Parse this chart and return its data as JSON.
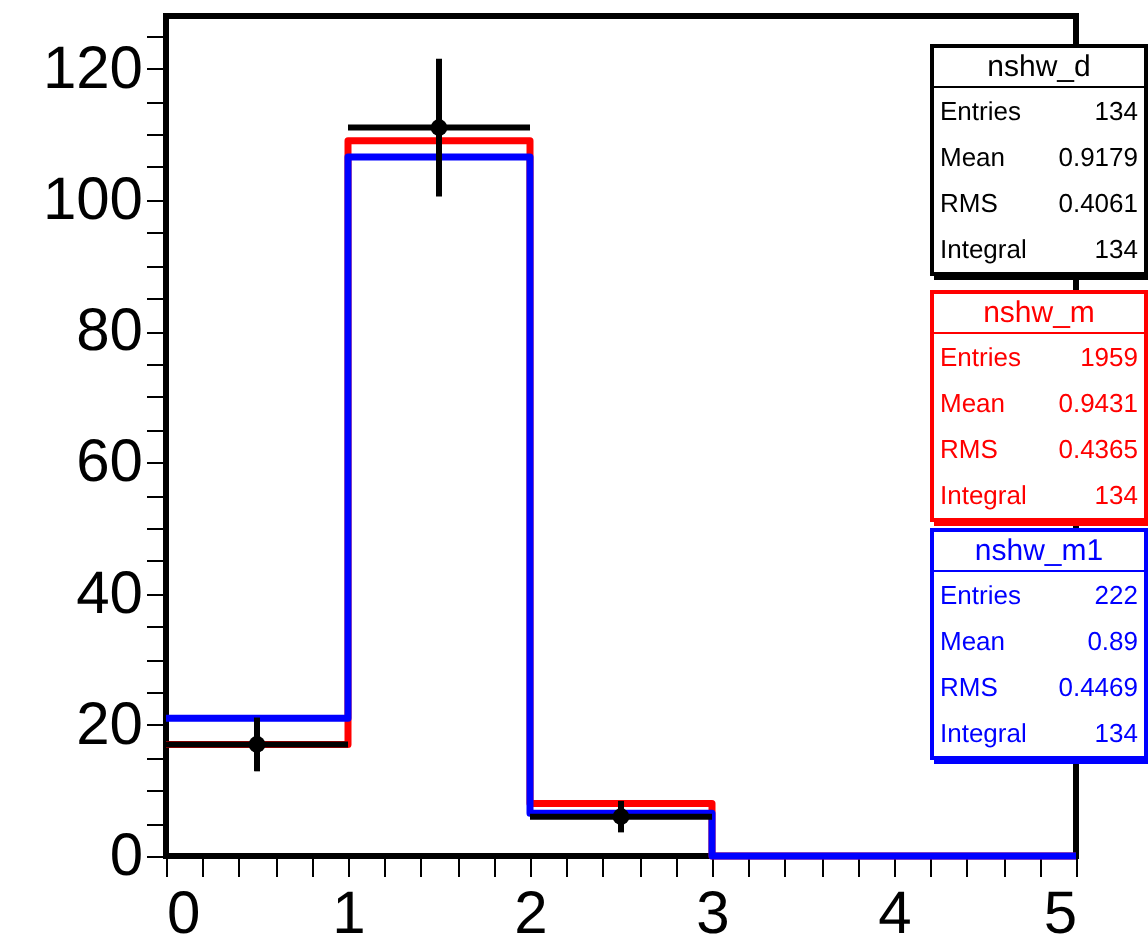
{
  "chart_data": {
    "type": "histogram",
    "bins": [
      0,
      1,
      2,
      3,
      4,
      5
    ],
    "xlim": [
      0,
      5
    ],
    "ylim": [
      0,
      128
    ],
    "xticks": [
      0,
      {
        "value": 0.2,
        "label": null
      },
      {
        "value": 0.4,
        "label": null
      },
      {
        "value": 0.6,
        "label": null
      },
      {
        "value": 0.8,
        "label": null
      },
      1,
      {
        "value": 1.2,
        "label": null
      },
      {
        "value": 1.4,
        "label": null
      },
      {
        "value": 1.6,
        "label": null
      },
      {
        "value": 1.8,
        "label": null
      },
      2,
      {
        "value": 2.2,
        "label": null
      },
      {
        "value": 2.4,
        "label": null
      },
      {
        "value": 2.6,
        "label": null
      },
      {
        "value": 2.8,
        "label": null
      },
      3,
      {
        "value": 3.2,
        "label": null
      },
      {
        "value": 3.4,
        "label": null
      },
      {
        "value": 3.6,
        "label": null
      },
      {
        "value": 3.8,
        "label": null
      },
      4,
      {
        "value": 4.2,
        "label": null
      },
      {
        "value": 4.4,
        "label": null
      },
      {
        "value": 4.6,
        "label": null
      },
      {
        "value": 4.8,
        "label": null
      },
      5
    ],
    "yticks": [
      0,
      {
        "value": 5,
        "label": null
      },
      {
        "value": 10,
        "label": null
      },
      {
        "value": 15,
        "label": null
      },
      20,
      {
        "value": 25,
        "label": null
      },
      {
        "value": 30,
        "label": null
      },
      {
        "value": 35,
        "label": null
      },
      40,
      {
        "value": 45,
        "label": null
      },
      {
        "value": 50,
        "label": null
      },
      {
        "value": 55,
        "label": null
      },
      60,
      {
        "value": 65,
        "label": null
      },
      {
        "value": 70,
        "label": null
      },
      {
        "value": 75,
        "label": null
      },
      80,
      {
        "value": 85,
        "label": null
      },
      {
        "value": 90,
        "label": null
      },
      {
        "value": 95,
        "label": null
      },
      100,
      {
        "value": 105,
        "label": null
      },
      {
        "value": 110,
        "label": null
      },
      {
        "value": 115,
        "label": null
      },
      120,
      {
        "value": 125,
        "label": null
      }
    ],
    "series": [
      {
        "name": "nshw_d",
        "color": "#000000",
        "type": "scatter",
        "marker": "circle",
        "x": [
          0.5,
          1.5,
          2.5
        ],
        "values": [
          17,
          111,
          6
        ],
        "errors": [
          4.1,
          10.5,
          2.4
        ],
        "xerrors": [
          0.5,
          0.5,
          0.5
        ]
      },
      {
        "name": "nshw_m",
        "color": "#ff0000",
        "values": [
          17,
          109,
          8,
          0,
          0
        ]
      },
      {
        "name": "nshw_m1",
        "color": "#0000ff",
        "values": [
          21,
          106.5,
          6.5,
          0,
          0
        ]
      }
    ],
    "annotations": [
      "Entries 134",
      "Mean 0.9179",
      "RMS 0.4061",
      "Integral 134",
      "Entries 1959",
      "Mean 0.9431",
      "RMS 0.4365",
      "Integral 134",
      "Entries 222",
      "Mean 0.89",
      "RMS 0.4469",
      "Integral 134"
    ]
  }
}
